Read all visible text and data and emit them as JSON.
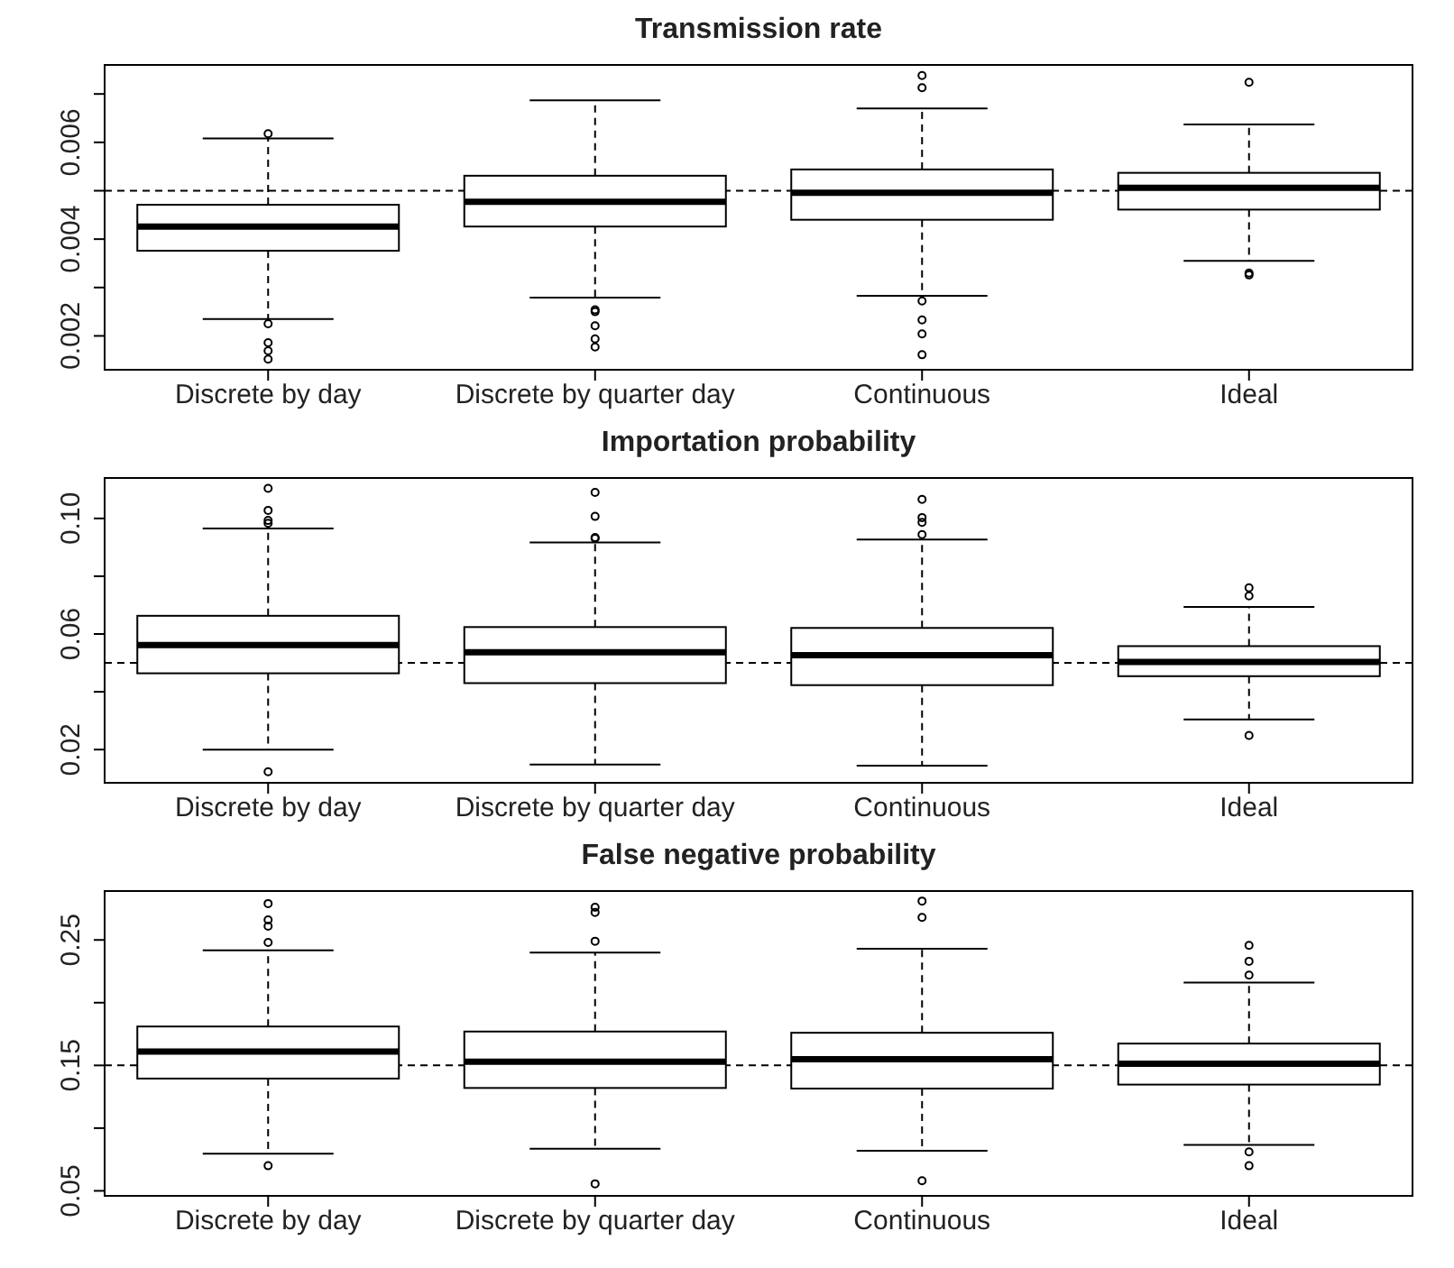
{
  "chart_data": [
    {
      "type": "box",
      "title": "Transmission rate",
      "categories": [
        "Discrete by day",
        "Discrete by quarter day",
        "Continuous",
        "Ideal"
      ],
      "boxes": [
        {
          "low": 0.00235,
          "q1": 0.00376,
          "median": 0.00426,
          "q3": 0.00471,
          "high": 0.00608,
          "outliers": [
            0.00618,
            0.00225,
            0.00186,
            0.00169,
            0.00152
          ]
        },
        {
          "low": 0.00279,
          "q1": 0.00426,
          "median": 0.00477,
          "q3": 0.00531,
          "high": 0.00687,
          "outliers": [
            0.00254,
            0.0025,
            0.00221,
            0.00194,
            0.00177
          ]
        },
        {
          "low": 0.00283,
          "q1": 0.0044,
          "median": 0.00496,
          "q3": 0.00544,
          "high": 0.0067,
          "outliers": [
            0.00738,
            0.00713,
            0.00272,
            0.00233,
            0.00204,
            0.00161
          ]
        },
        {
          "low": 0.00355,
          "q1": 0.00461,
          "median": 0.00506,
          "q3": 0.00537,
          "high": 0.00637,
          "outliers": [
            0.00724,
            0.0033,
            0.00326
          ]
        }
      ],
      "ylim": [
        0.0013,
        0.0076
      ],
      "yticks": [
        0.002,
        {
          "value": 0.003,
          "label": null
        },
        0.004,
        {
          "value": 0.005,
          "label": null
        },
        0.006,
        {
          "value": 0.007,
          "label": null
        }
      ],
      "ref_lines": [
        {
          "axis": "y",
          "value": 0.005,
          "line_style": "dashed"
        }
      ],
      "grid": false
    },
    {
      "type": "box",
      "title": "Importation probability",
      "categories": [
        "Discrete by day",
        "Discrete by quarter day",
        "Continuous",
        "Ideal"
      ],
      "boxes": [
        {
          "low": 0.02,
          "q1": 0.0464,
          "median": 0.0562,
          "q3": 0.0663,
          "high": 0.0965,
          "outliers": [
            0.1104,
            0.1028,
            0.0993,
            0.0983,
            0.0123
          ]
        },
        {
          "low": 0.0148,
          "q1": 0.043,
          "median": 0.0537,
          "q3": 0.0624,
          "high": 0.0917,
          "outliers": [
            0.109,
            0.1007,
            0.0934,
            0.0931
          ]
        },
        {
          "low": 0.0144,
          "q1": 0.0423,
          "median": 0.0527,
          "q3": 0.0621,
          "high": 0.0927,
          "outliers": [
            0.1066,
            0.1003,
            0.0986,
            0.0944
          ]
        },
        {
          "low": 0.0304,
          "q1": 0.0454,
          "median": 0.0503,
          "q3": 0.0558,
          "high": 0.0694,
          "outliers": [
            0.076,
            0.0732,
            0.0249
          ]
        }
      ],
      "ylim": [
        0.0085,
        0.114
      ],
      "yticks": [
        0.02,
        {
          "value": 0.04,
          "label": null
        },
        {
          "value": 0.06,
          "label": "0.06"
        },
        {
          "value": 0.08,
          "label": null
        },
        {
          "value": 0.1,
          "label": "0.10"
        }
      ],
      "ref_lines": [
        {
          "axis": "y",
          "value": 0.05,
          "line_style": "dashed"
        }
      ],
      "grid": false
    },
    {
      "type": "box",
      "title": "False negative probability",
      "categories": [
        "Discrete by day",
        "Discrete by quarter day",
        "Continuous",
        "Ideal"
      ],
      "boxes": [
        {
          "low": 0.0796,
          "q1": 0.1395,
          "median": 0.161,
          "q3": 0.181,
          "high": 0.2417,
          "outliers": [
            0.279,
            0.266,
            0.261,
            0.248,
            0.07
          ]
        },
        {
          "low": 0.0835,
          "q1": 0.132,
          "median": 0.153,
          "q3": 0.177,
          "high": 0.24,
          "outliers": [
            0.276,
            0.272,
            0.249,
            0.0556
          ]
        },
        {
          "low": 0.082,
          "q1": 0.1315,
          "median": 0.155,
          "q3": 0.176,
          "high": 0.243,
          "outliers": [
            0.281,
            0.268,
            0.058
          ]
        },
        {
          "low": 0.0867,
          "q1": 0.1347,
          "median": 0.1514,
          "q3": 0.1674,
          "high": 0.216,
          "outliers": [
            0.2457,
            0.233,
            0.222,
            0.081,
            0.07
          ]
        }
      ],
      "ylim": [
        0.046,
        0.289
      ],
      "yticks": [
        0.05,
        {
          "value": 0.1,
          "label": null
        },
        0.15,
        {
          "value": 0.2,
          "label": null
        },
        0.25
      ],
      "ref_lines": [
        {
          "axis": "y",
          "value": 0.15,
          "line_style": "dashed"
        }
      ],
      "grid": false
    }
  ]
}
